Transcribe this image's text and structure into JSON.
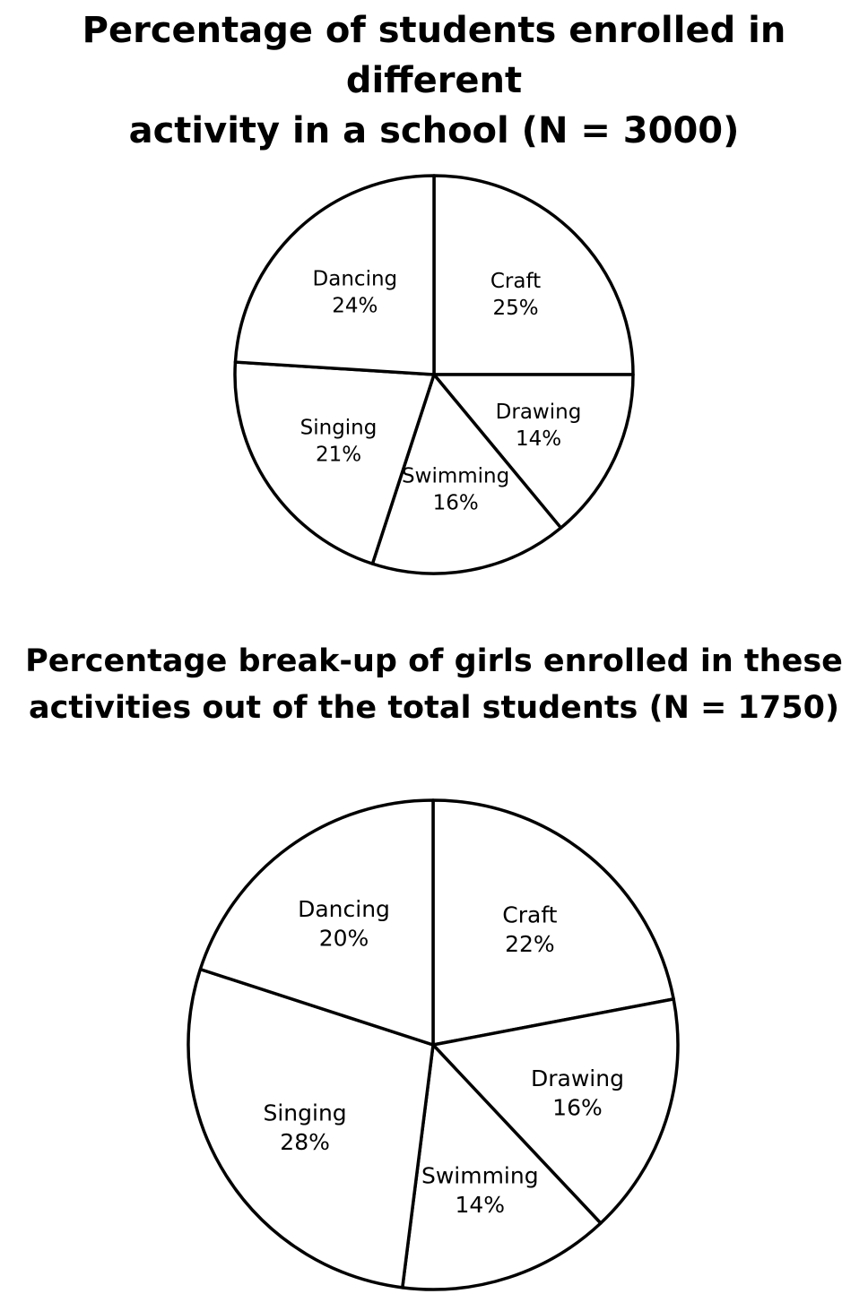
{
  "chart_data": [
    {
      "type": "pie",
      "title_lines": [
        "Percentage of students enrolled in different",
        "activity in a school (N = 3000)"
      ],
      "categories": [
        "Craft",
        "Drawing",
        "Swimming",
        "Singing",
        "Dancing"
      ],
      "values": [
        25,
        14,
        16,
        21,
        24
      ],
      "value_labels": [
        "25%",
        "14%",
        "16%",
        "21%",
        "24%"
      ],
      "unit": "%"
    },
    {
      "type": "pie",
      "title_lines": [
        "Percentage break-up of girls enrolled in these",
        "activities out of the total students (N = 1750)"
      ],
      "categories": [
        "Craft",
        "Drawing",
        "Swimming",
        "Singing",
        "Dancing"
      ],
      "values": [
        22,
        16,
        14,
        28,
        20
      ],
      "value_labels": [
        "22%",
        "16%",
        "14%",
        "28%",
        "20%"
      ],
      "unit": "%"
    }
  ],
  "colors": {
    "slice_fill": "#ffffff",
    "slice_stroke": "#000000",
    "text": "#000000"
  }
}
